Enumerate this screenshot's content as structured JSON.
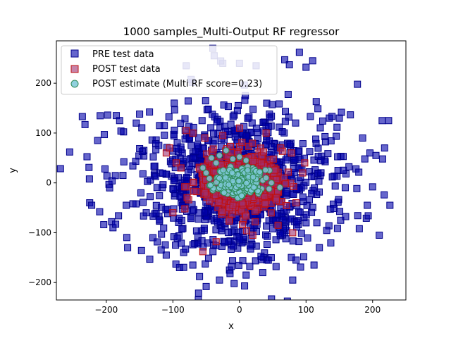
{
  "chart_data": {
    "type": "scatter",
    "title": "1000 samples_Multi-Output RF regressor",
    "xlabel": "x",
    "ylabel": "y",
    "xlim": [
      -275,
      250
    ],
    "ylim": [
      -235,
      285
    ],
    "xticks": [
      -200,
      -100,
      0,
      100,
      200
    ],
    "yticks": [
      -200,
      -100,
      0,
      100,
      200
    ],
    "grid": false,
    "legend_position": "top-left",
    "series": [
      {
        "name": "PRE test data",
        "marker": "square",
        "color": "#0000aa",
        "edgecolor": "#00008b",
        "spread_xy": [
          70,
          75
        ],
        "sample_count": 1000,
        "points": [
          [
            -255,
            62
          ],
          [
            -236,
            133
          ],
          [
            -232,
            117
          ],
          [
            -226,
            31
          ],
          [
            -225,
            -40
          ],
          [
            -222,
            -45
          ],
          [
            -213,
            85
          ],
          [
            -210,
            -58
          ],
          [
            -203,
            97
          ],
          [
            -198,
            136
          ],
          [
            -202,
            28
          ],
          [
            -199,
            14
          ],
          [
            -196,
            -3
          ],
          [
            -195,
            -10
          ],
          [
            -192,
            -78
          ],
          [
            -190,
            -90
          ],
          [
            -185,
            135
          ],
          [
            -186,
            -83
          ],
          [
            -180,
            125
          ],
          [
            -178,
            104
          ],
          [
            -175,
            15
          ],
          [
            -170,
            -45
          ],
          [
            -168,
            -130
          ],
          [
            -160,
            -42
          ],
          [
            -155,
            120
          ],
          [
            -150,
            138
          ],
          [
            -148,
            -20
          ],
          [
            -145,
            18
          ],
          [
            -140,
            -60
          ],
          [
            -130,
            -110
          ],
          [
            -120,
            115
          ],
          [
            -110,
            -145
          ],
          [
            -98,
            160
          ],
          [
            -96,
            -125
          ],
          [
            -90,
            -170
          ],
          [
            -80,
            235
          ],
          [
            -70,
            -165
          ],
          [
            -60,
            -188
          ],
          [
            -50,
            -208
          ],
          [
            -40,
            270
          ],
          [
            -38,
            255
          ],
          [
            -30,
            -195
          ],
          [
            -25,
            240
          ],
          [
            -15,
            -175
          ],
          [
            -8,
            -202
          ],
          [
            0,
            240
          ],
          [
            10,
            -185
          ],
          [
            25,
            235
          ],
          [
            35,
            -180
          ],
          [
            55,
            -168
          ],
          [
            68,
            247
          ],
          [
            75,
            237
          ],
          [
            80,
            -195
          ],
          [
            85,
            -155
          ],
          [
            90,
            262
          ],
          [
            100,
            232
          ],
          [
            110,
            245
          ],
          [
            112,
            -165
          ],
          [
            120,
            -130
          ],
          [
            135,
            130
          ],
          [
            148,
            25
          ],
          [
            150,
            130
          ],
          [
            152,
            -75
          ],
          [
            160,
            18
          ],
          [
            175,
            28
          ],
          [
            180,
            -92
          ],
          [
            185,
            90
          ],
          [
            192,
            -45
          ],
          [
            196,
            60
          ],
          [
            200,
            -8
          ],
          [
            205,
            55
          ],
          [
            210,
            -105
          ],
          [
            215,
            48
          ],
          [
            218,
            70
          ],
          [
            224,
            125
          ],
          [
            226,
            -45
          ]
        ]
      },
      {
        "name": "POST test data",
        "marker": "square",
        "color": "#a03070",
        "edgecolor": "#c01010",
        "spread_xy": [
          28,
          26
        ],
        "sample_count": 1000,
        "points": [
          [
            -110,
            60
          ],
          [
            -105,
            70
          ],
          [
            -100,
            -60
          ],
          [
            -95,
            40
          ],
          [
            -82,
            -52
          ],
          [
            -80,
            105
          ],
          [
            -70,
            100
          ],
          [
            -55,
            -138
          ],
          [
            -52,
            90
          ],
          [
            -35,
            -118
          ],
          [
            -25,
            95
          ],
          [
            0,
            110
          ],
          [
            20,
            -105
          ],
          [
            40,
            100
          ],
          [
            58,
            -85
          ],
          [
            62,
            70
          ],
          [
            78,
            60
          ],
          [
            85,
            -40
          ],
          [
            95,
            20
          ],
          [
            98,
            40
          ],
          [
            80,
            -100
          ],
          [
            -88,
            30
          ]
        ]
      },
      {
        "name": "POST estimate (Multi RF score=0.23)",
        "marker": "circle",
        "color": "#7ec8d8",
        "edgecolor": "#2e8b57",
        "spread_xy": [
          16,
          13
        ],
        "sample_count": 300,
        "points": [
          [
            -55,
            30
          ],
          [
            -50,
            20
          ],
          [
            -45,
            -5
          ],
          [
            -42,
            50
          ],
          [
            -40,
            -15
          ],
          [
            -35,
            40
          ],
          [
            -32,
            -12
          ],
          [
            -30,
            55
          ],
          [
            -25,
            -18
          ],
          [
            -20,
            65
          ],
          [
            -18,
            -22
          ],
          [
            -10,
            48
          ],
          [
            -5,
            -25
          ],
          [
            0,
            52
          ],
          [
            5,
            -20
          ],
          [
            10,
            45
          ],
          [
            15,
            -10
          ],
          [
            20,
            30
          ],
          [
            25,
            22
          ],
          [
            30,
            15
          ],
          [
            35,
            5
          ],
          [
            40,
            10
          ],
          [
            45,
            25
          ],
          [
            48,
            0
          ]
        ]
      }
    ]
  }
}
